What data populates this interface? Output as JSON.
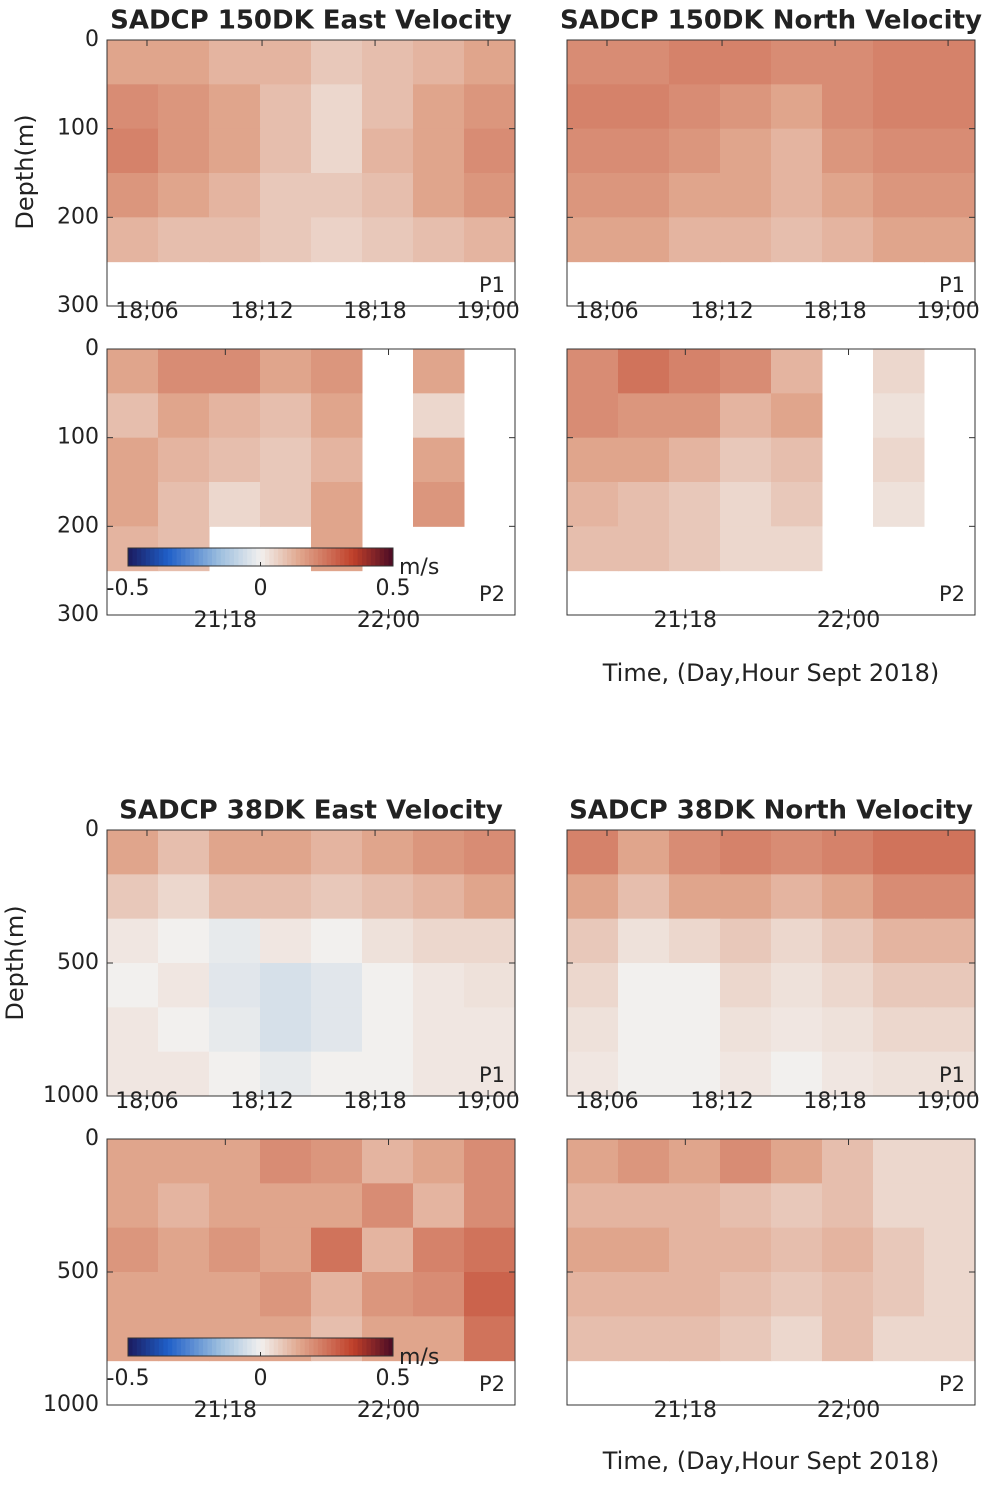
{
  "axis_labels": {
    "ylabel": "Depth(m)",
    "xlabel": "Time, (Day,Hour Sept 2018)"
  },
  "chart_data": [
    {
      "type": "heatmap",
      "title": "SADCP 150DK East Velocity",
      "panel_label": "P1",
      "ylim": [
        0,
        300
      ],
      "yticks": [
        0,
        100,
        200,
        300
      ],
      "xticks": [
        "18;06",
        "18;12",
        "18;18",
        "19;00"
      ],
      "values": [
        [
          0.15,
          0.15,
          0.12,
          0.12,
          0.08,
          0.1,
          0.12,
          0.15
        ],
        [
          0.2,
          0.18,
          0.15,
          0.1,
          0.05,
          0.1,
          0.15,
          0.18
        ],
        [
          0.22,
          0.18,
          0.15,
          0.1,
          0.05,
          0.12,
          0.15,
          0.2
        ],
        [
          0.18,
          0.15,
          0.12,
          0.08,
          0.08,
          0.1,
          0.15,
          0.18
        ],
        [
          0.12,
          0.1,
          0.1,
          0.08,
          0.06,
          0.08,
          0.1,
          0.12
        ],
        [
          null,
          null,
          null,
          null,
          null,
          null,
          null,
          null
        ]
      ]
    },
    {
      "type": "heatmap",
      "title": "SADCP 150DK North Velocity",
      "panel_label": "P1",
      "ylim": [
        0,
        300
      ],
      "yticks": [
        0,
        100,
        200,
        300
      ],
      "xticks": [
        "18;06",
        "18;12",
        "18;18",
        "19;00"
      ],
      "values": [
        [
          0.2,
          0.2,
          0.22,
          0.22,
          0.2,
          0.2,
          0.22,
          0.22
        ],
        [
          0.22,
          0.22,
          0.2,
          0.18,
          0.15,
          0.2,
          0.22,
          0.22
        ],
        [
          0.2,
          0.2,
          0.18,
          0.15,
          0.12,
          0.18,
          0.2,
          0.2
        ],
        [
          0.18,
          0.18,
          0.15,
          0.15,
          0.12,
          0.15,
          0.18,
          0.18
        ],
        [
          0.15,
          0.15,
          0.12,
          0.12,
          0.1,
          0.12,
          0.15,
          0.15
        ],
        [
          null,
          null,
          null,
          null,
          null,
          null,
          null,
          null
        ]
      ]
    },
    {
      "type": "heatmap",
      "panel_label": "P2",
      "ylim": [
        0,
        300
      ],
      "yticks": [
        0,
        100,
        200,
        300
      ],
      "xticks": [
        "21;18",
        "22;00"
      ],
      "colorbar": {
        "label": "m/s",
        "lim": [
          -0.5,
          0.5
        ],
        "ticks": [
          -0.5,
          0,
          0.5
        ]
      },
      "values": [
        [
          0.15,
          0.2,
          0.2,
          0.15,
          0.18,
          null,
          0.15,
          null
        ],
        [
          0.1,
          0.15,
          0.12,
          0.1,
          0.15,
          null,
          0.05,
          null
        ],
        [
          0.15,
          0.12,
          0.1,
          0.08,
          0.12,
          null,
          0.15,
          null
        ],
        [
          0.15,
          0.1,
          0.05,
          0.08,
          0.15,
          null,
          0.18,
          null
        ],
        [
          0.12,
          0.1,
          null,
          null,
          0.15,
          null,
          null,
          null
        ],
        [
          null,
          null,
          null,
          null,
          null,
          null,
          null,
          null
        ]
      ]
    },
    {
      "type": "heatmap",
      "panel_label": "P2",
      "ylim": [
        0,
        300
      ],
      "yticks": [
        0,
        100,
        200,
        300
      ],
      "xticks": [
        "21;18",
        "22;00"
      ],
      "values": [
        [
          0.2,
          0.25,
          0.22,
          0.2,
          0.12,
          null,
          0.05,
          null
        ],
        [
          0.2,
          0.18,
          0.18,
          0.12,
          0.15,
          null,
          0.03,
          null
        ],
        [
          0.15,
          0.15,
          0.12,
          0.08,
          0.1,
          null,
          0.05,
          null
        ],
        [
          0.12,
          0.1,
          0.08,
          0.05,
          0.08,
          null,
          0.03,
          null
        ],
        [
          0.1,
          0.1,
          0.08,
          0.05,
          0.05,
          null,
          null,
          null
        ],
        [
          null,
          null,
          null,
          null,
          null,
          null,
          null,
          null
        ]
      ]
    },
    {
      "type": "heatmap",
      "title": "SADCP 38DK East Velocity",
      "panel_label": "P1",
      "ylim": [
        0,
        1000
      ],
      "yticks": [
        0,
        500,
        1000
      ],
      "xticks": [
        "18;06",
        "18;12",
        "18;18",
        "19;00"
      ],
      "values": [
        [
          0.15,
          0.1,
          0.15,
          0.15,
          0.12,
          0.15,
          0.18,
          0.2
        ],
        [
          0.08,
          0.05,
          0.1,
          0.1,
          0.08,
          0.1,
          0.12,
          0.15
        ],
        [
          0.02,
          0.0,
          -0.02,
          0.02,
          0.0,
          0.03,
          0.05,
          0.05
        ],
        [
          0.0,
          0.02,
          -0.03,
          -0.05,
          -0.03,
          0.0,
          0.02,
          0.03
        ],
        [
          0.02,
          0.0,
          -0.02,
          -0.05,
          -0.03,
          0.0,
          0.02,
          0.02
        ],
        [
          0.02,
          0.02,
          0.0,
          -0.02,
          0.0,
          0.0,
          0.02,
          0.02
        ]
      ]
    },
    {
      "type": "heatmap",
      "title": "SADCP 38DK North Velocity",
      "panel_label": "P1",
      "ylim": [
        0,
        1000
      ],
      "yticks": [
        0,
        500,
        1000
      ],
      "xticks": [
        "18;06",
        "18;12",
        "18;18",
        "19;00"
      ],
      "values": [
        [
          0.22,
          0.15,
          0.2,
          0.22,
          0.2,
          0.22,
          0.25,
          0.25
        ],
        [
          0.15,
          0.1,
          0.15,
          0.15,
          0.12,
          0.15,
          0.2,
          0.2
        ],
        [
          0.08,
          0.03,
          0.05,
          0.08,
          0.05,
          0.08,
          0.12,
          0.12
        ],
        [
          0.05,
          0.0,
          0.0,
          0.05,
          0.03,
          0.05,
          0.08,
          0.08
        ],
        [
          0.03,
          0.0,
          0.0,
          0.03,
          0.02,
          0.03,
          0.05,
          0.05
        ],
        [
          0.02,
          0.0,
          0.0,
          0.02,
          0.0,
          0.02,
          0.03,
          0.03
        ]
      ]
    },
    {
      "type": "heatmap",
      "panel_label": "P2",
      "ylim": [
        0,
        1000
      ],
      "yticks": [
        0,
        500,
        1000
      ],
      "xticks": [
        "21;18",
        "22;00"
      ],
      "colorbar": {
        "label": "m/s",
        "lim": [
          -0.5,
          0.5
        ],
        "ticks": [
          -0.5,
          0,
          0.5
        ]
      },
      "values": [
        [
          0.15,
          0.15,
          0.15,
          0.2,
          0.18,
          0.12,
          0.15,
          0.2
        ],
        [
          0.15,
          0.12,
          0.15,
          0.15,
          0.15,
          0.2,
          0.12,
          0.2
        ],
        [
          0.18,
          0.15,
          0.18,
          0.15,
          0.25,
          0.12,
          0.22,
          0.25
        ],
        [
          0.15,
          0.15,
          0.15,
          0.18,
          0.12,
          0.18,
          0.2,
          0.28
        ],
        [
          0.15,
          0.15,
          0.15,
          0.15,
          0.1,
          0.15,
          0.15,
          0.25
        ],
        [
          null,
          null,
          null,
          null,
          null,
          null,
          null,
          null
        ]
      ]
    },
    {
      "type": "heatmap",
      "panel_label": "P2",
      "ylim": [
        0,
        1000
      ],
      "yticks": [
        0,
        500,
        1000
      ],
      "xticks": [
        "21;18",
        "22;00"
      ],
      "values": [
        [
          0.15,
          0.18,
          0.15,
          0.2,
          0.15,
          0.1,
          0.05,
          0.05
        ],
        [
          0.12,
          0.12,
          0.12,
          0.1,
          0.08,
          0.1,
          0.05,
          0.05
        ],
        [
          0.15,
          0.15,
          0.12,
          0.12,
          0.1,
          0.12,
          0.08,
          0.05
        ],
        [
          0.12,
          0.12,
          0.12,
          0.1,
          0.08,
          0.1,
          0.08,
          0.05
        ],
        [
          0.1,
          0.1,
          0.1,
          0.08,
          0.05,
          0.1,
          0.05,
          0.05
        ],
        [
          null,
          null,
          null,
          null,
          null,
          null,
          null,
          null
        ]
      ]
    }
  ]
}
